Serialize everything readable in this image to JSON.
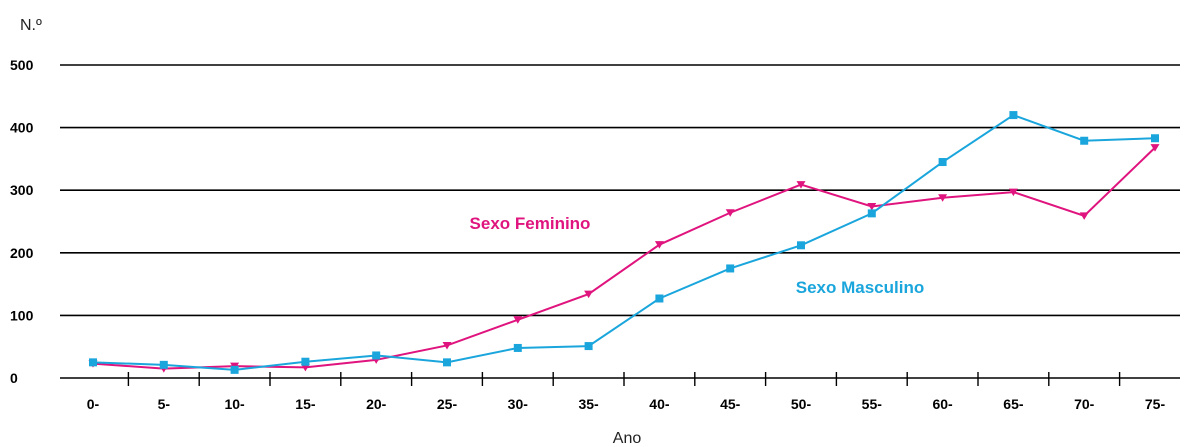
{
  "chart_data": {
    "type": "line",
    "ylabel": "N.º",
    "xlabel": "Ano",
    "ylim": [
      0,
      500
    ],
    "yticks": [
      "0",
      "100",
      "200",
      "300",
      "400",
      "500"
    ],
    "grid": true,
    "categories": [
      "0-",
      "5-",
      "10-",
      "15-",
      "20-",
      "25-",
      "30-",
      "35-",
      "40-",
      "45-",
      "50-",
      "55-",
      "60-",
      "65-",
      "70-",
      "75-"
    ],
    "series": [
      {
        "name": "Sexo Feminino",
        "color": "#e0147e",
        "marker": "triangle-down",
        "values": [
          23,
          15,
          19,
          17,
          29,
          52,
          93,
          134,
          213,
          264,
          309,
          274,
          288,
          297,
          259,
          368
        ]
      },
      {
        "name": "Sexo Masculino",
        "color": "#1aa6dc",
        "marker": "square",
        "values": [
          25,
          21,
          13,
          26,
          36,
          25,
          48,
          51,
          127,
          175,
          212,
          263,
          345,
          420,
          379,
          383
        ]
      }
    ]
  }
}
